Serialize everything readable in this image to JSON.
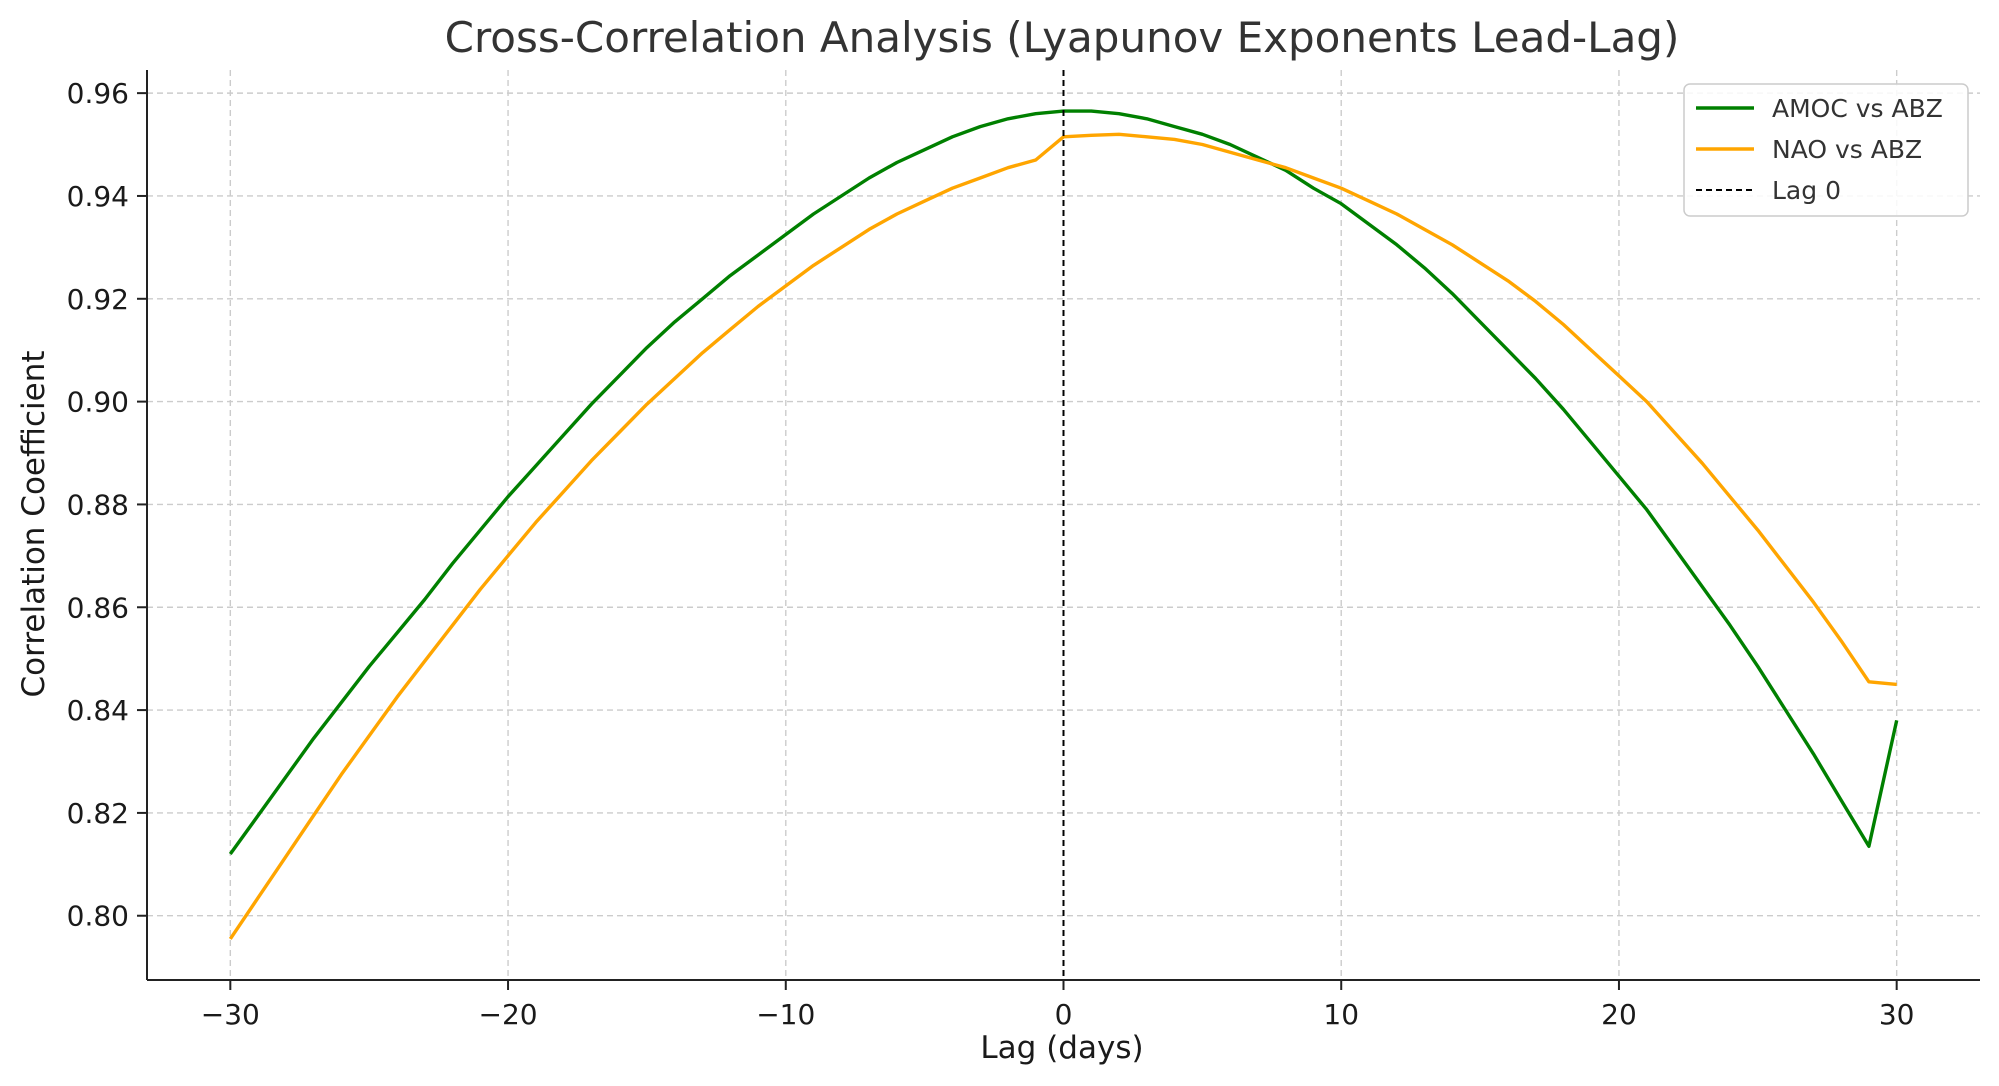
{
  "chart_data": {
    "type": "line",
    "title": "Cross-Correlation Analysis (Lyapunov Exponents Lead-Lag)",
    "xlabel": "Lag (days)",
    "ylabel": "Correlation Coefficient",
    "xlim": [
      -33,
      33
    ],
    "ylim": [
      0.7875,
      0.9645
    ],
    "xticks": [
      -30,
      -20,
      -10,
      0,
      10,
      20,
      30
    ],
    "xtick_labels": [
      "−30",
      "−20",
      "−10",
      "0",
      "10",
      "20",
      "30"
    ],
    "yticks": [
      0.8,
      0.82,
      0.84,
      0.86,
      0.88,
      0.9,
      0.92,
      0.94,
      0.96
    ],
    "ytick_labels": [
      "0.80",
      "0.82",
      "0.84",
      "0.86",
      "0.88",
      "0.90",
      "0.92",
      "0.94",
      "0.96"
    ],
    "grid": true,
    "legend_position": "top-right",
    "series": [
      {
        "name": "AMOC vs ABZ",
        "color": "#008000",
        "x": [
          -30,
          -29,
          -28,
          -27,
          -26,
          -25,
          -24,
          -23,
          -22,
          -21,
          -20,
          -19,
          -18,
          -17,
          -16,
          -15,
          -14,
          -13,
          -12,
          -11,
          -10,
          -9,
          -8,
          -7,
          -6,
          -5,
          -4,
          -3,
          -2,
          -1,
          0,
          1,
          2,
          3,
          4,
          5,
          6,
          7,
          8,
          9,
          10,
          11,
          12,
          13,
          14,
          15,
          16,
          17,
          18,
          19,
          20,
          21,
          22,
          23,
          24,
          25,
          26,
          27,
          28,
          29,
          30
        ],
        "y": [
          0.812,
          0.8195,
          0.827,
          0.8345,
          0.8415,
          0.8485,
          0.855,
          0.8615,
          0.8685,
          0.875,
          0.8815,
          0.8875,
          0.8935,
          0.8995,
          0.905,
          0.9105,
          0.9155,
          0.92,
          0.9245,
          0.9285,
          0.9325,
          0.9365,
          0.94,
          0.9435,
          0.9465,
          0.949,
          0.9515,
          0.9535,
          0.955,
          0.956,
          0.9565,
          0.9565,
          0.956,
          0.955,
          0.9535,
          0.952,
          0.95,
          0.9475,
          0.945,
          0.9415,
          0.9385,
          0.9345,
          0.9305,
          0.926,
          0.921,
          0.9155,
          0.91,
          0.9045,
          0.8985,
          0.892,
          0.8855,
          0.879,
          0.8715,
          0.864,
          0.8565,
          0.8485,
          0.84,
          0.8315,
          0.8225,
          0.8135,
          0.838
        ]
      },
      {
        "name": "NAO vs ABZ",
        "color": "#ffa500",
        "x": [
          -30,
          -29,
          -28,
          -27,
          -26,
          -25,
          -24,
          -23,
          -22,
          -21,
          -20,
          -19,
          -18,
          -17,
          -16,
          -15,
          -14,
          -13,
          -12,
          -11,
          -10,
          -9,
          -8,
          -7,
          -6,
          -5,
          -4,
          -3,
          -2,
          -1,
          0,
          1,
          2,
          3,
          4,
          5,
          6,
          7,
          8,
          9,
          10,
          11,
          12,
          13,
          14,
          15,
          16,
          17,
          18,
          19,
          20,
          21,
          22,
          23,
          24,
          25,
          26,
          27,
          28,
          29,
          30
        ],
        "y": [
          0.7955,
          0.8035,
          0.8115,
          0.8195,
          0.8275,
          0.835,
          0.8425,
          0.8495,
          0.8565,
          0.8635,
          0.87,
          0.8765,
          0.8825,
          0.8885,
          0.894,
          0.8995,
          0.9045,
          0.9095,
          0.914,
          0.9185,
          0.9225,
          0.9265,
          0.93,
          0.9335,
          0.9365,
          0.939,
          0.9415,
          0.9435,
          0.9455,
          0.947,
          0.9515,
          0.9518,
          0.952,
          0.9515,
          0.951,
          0.95,
          0.9485,
          0.947,
          0.9455,
          0.9435,
          0.9415,
          0.939,
          0.9365,
          0.9335,
          0.9305,
          0.927,
          0.9235,
          0.9195,
          0.915,
          0.91,
          0.905,
          0.9,
          0.894,
          0.888,
          0.8815,
          0.875,
          0.868,
          0.861,
          0.8535,
          0.8455,
          0.845
        ]
      },
      {
        "name": "Lag 0",
        "color": "#000000",
        "style": "dashed",
        "x_value": 0
      }
    ]
  }
}
